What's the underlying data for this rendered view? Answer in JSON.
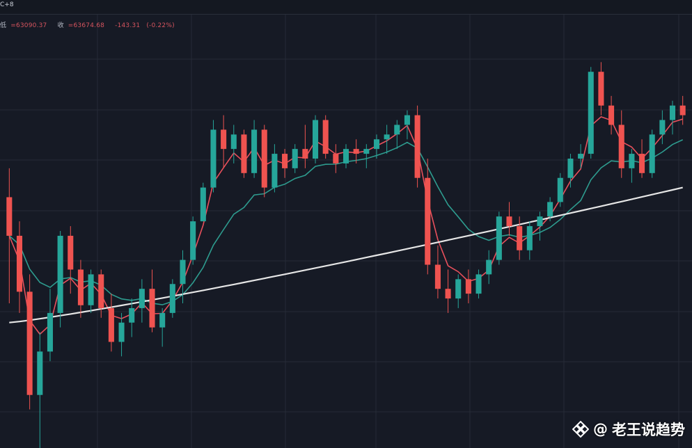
{
  "header": {
    "interval_label": "C+8",
    "ohlc": {
      "low_label": "低",
      "low_value": "=63090.37",
      "close_label": "收",
      "close_value": "=63674.68",
      "change": "-143.31",
      "change_pct": "(-0.22%)"
    }
  },
  "watermark": {
    "at": "@",
    "author": "老王说趋势",
    "logo_icon": "binance-square-icon"
  },
  "colors": {
    "background": "#161a25",
    "grid": "#262b37",
    "up": "#26a69a",
    "down": "#ef5350",
    "ma_fast": "#e8505c",
    "ma_mid": "#2e9c8f",
    "ma_slow": "#e6e6e6"
  },
  "chart_data": {
    "type": "candlestick",
    "title": "",
    "xlabel": "",
    "ylabel": "",
    "grid": true,
    "legend": "none",
    "ylim": [
      61500,
      66000
    ],
    "candles": [
      [
        64100,
        64400,
        63000,
        63700
      ],
      [
        63700,
        63850,
        62900,
        63120
      ],
      [
        63120,
        63300,
        61900,
        62050
      ],
      [
        62050,
        62700,
        61500,
        62500
      ],
      [
        62500,
        63150,
        62400,
        62900
      ],
      [
        62900,
        63750,
        62750,
        63700
      ],
      [
        63700,
        63800,
        63100,
        63350
      ],
      [
        63350,
        63450,
        62850,
        62980
      ],
      [
        62980,
        63350,
        62900,
        63300
      ],
      [
        63300,
        63350,
        62850,
        62950
      ],
      [
        62950,
        63100,
        62500,
        62600
      ],
      [
        62600,
        62900,
        62450,
        62800
      ],
      [
        62800,
        63050,
        62650,
        62950
      ],
      [
        62950,
        63250,
        62800,
        63150
      ],
      [
        63150,
        63350,
        62700,
        62750
      ],
      [
        62750,
        62950,
        62550,
        62900
      ],
      [
        62900,
        63250,
        62850,
        63200
      ],
      [
        63200,
        63550,
        63000,
        63450
      ],
      [
        63450,
        63900,
        63400,
        63850
      ],
      [
        63850,
        64250,
        63850,
        64200
      ],
      [
        64200,
        64900,
        64150,
        64800
      ],
      [
        64800,
        64950,
        64400,
        64600
      ],
      [
        64600,
        64850,
        64450,
        64750
      ],
      [
        64750,
        64800,
        64300,
        64350
      ],
      [
        64350,
        64900,
        64300,
        64800
      ],
      [
        64800,
        64850,
        64100,
        64200
      ],
      [
        64200,
        64650,
        64150,
        64550
      ],
      [
        64550,
        64600,
        64300,
        64400
      ],
      [
        64400,
        64650,
        64350,
        64600
      ],
      [
        64600,
        64850,
        64400,
        64500
      ],
      [
        64500,
        64950,
        64450,
        64900
      ],
      [
        64900,
        64950,
        64500,
        64550
      ],
      [
        64550,
        64650,
        64350,
        64450
      ],
      [
        64450,
        64650,
        64400,
        64600
      ],
      [
        64600,
        64700,
        64450,
        64550
      ],
      [
        64550,
        64650,
        64400,
        64600
      ],
      [
        64600,
        64750,
        64500,
        64700
      ],
      [
        64700,
        64850,
        64550,
        64750
      ],
      [
        64750,
        64900,
        64600,
        64850
      ],
      [
        64850,
        65000,
        64700,
        64950
      ],
      [
        64950,
        65050,
        64200,
        64300
      ],
      [
        64300,
        64500,
        63300,
        63400
      ],
      [
        63400,
        63600,
        63050,
        63150
      ],
      [
        63150,
        63350,
        62900,
        63050
      ],
      [
        63050,
        63300,
        62950,
        63250
      ],
      [
        63250,
        63350,
        63000,
        63100
      ],
      [
        63100,
        63350,
        63050,
        63300
      ],
      [
        63300,
        63550,
        63200,
        63450
      ],
      [
        63450,
        63950,
        63400,
        63900
      ],
      [
        63900,
        64050,
        63700,
        63800
      ],
      [
        63800,
        63900,
        63450,
        63550
      ],
      [
        63550,
        63850,
        63450,
        63800
      ],
      [
        63800,
        63950,
        63650,
        63900
      ],
      [
        63900,
        64100,
        63850,
        64050
      ],
      [
        64050,
        64350,
        64000,
        64300
      ],
      [
        64300,
        64550,
        64200,
        64500
      ],
      [
        64500,
        64650,
        64400,
        64550
      ],
      [
        64550,
        65450,
        64500,
        65400
      ],
      [
        65400,
        65500,
        64950,
        65050
      ],
      [
        65050,
        65150,
        64750,
        64850
      ],
      [
        64850,
        65000,
        64300,
        64400
      ],
      [
        64400,
        64600,
        64250,
        64550
      ],
      [
        64550,
        64700,
        64300,
        64350
      ],
      [
        64350,
        64800,
        64300,
        64750
      ],
      [
        64750,
        65000,
        64650,
        64900
      ],
      [
        64900,
        65100,
        64750,
        65050
      ],
      [
        65050,
        65150,
        64850,
        64950
      ]
    ],
    "moving_averages": [
      {
        "period": 7,
        "color_key": "ma_fast"
      },
      {
        "period": 25,
        "color_key": "ma_mid"
      },
      {
        "period": 99,
        "color_key": "ma_slow"
      }
    ]
  }
}
